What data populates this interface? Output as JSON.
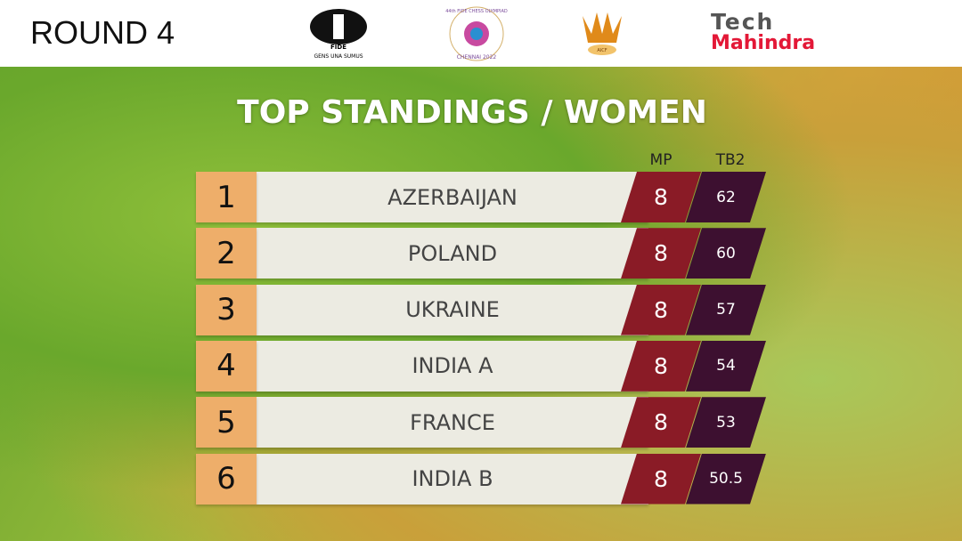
{
  "header": {
    "round": "ROUND 4",
    "logos": {
      "fide": "FIDE",
      "fide_motto": "GENS UNA SUMUS",
      "olympiad_top": "44th FIDE CHESS OLYMPIAD",
      "olympiad_bottom": "CHENNAI 2022",
      "aicf": "AICF",
      "sponsor_top": "Tech",
      "sponsor_bottom": "Mahindra"
    }
  },
  "title": "TOP STANDINGS / WOMEN",
  "table": {
    "columns": [
      "MP",
      "TB2"
    ],
    "rows": [
      {
        "rank": 1,
        "team": "AZERBAIJAN",
        "mp": 8,
        "tb2": 62
      },
      {
        "rank": 2,
        "team": "POLAND",
        "mp": 8,
        "tb2": 60
      },
      {
        "rank": 3,
        "team": "UKRAINE",
        "mp": 8,
        "tb2": 57
      },
      {
        "rank": 4,
        "team": "INDIA A",
        "mp": 8,
        "tb2": 54
      },
      {
        "rank": 5,
        "team": "FRANCE",
        "mp": 8,
        "tb2": 53
      },
      {
        "rank": 6,
        "team": "INDIA B",
        "mp": 8,
        "tb2": 50.5
      }
    ]
  }
}
